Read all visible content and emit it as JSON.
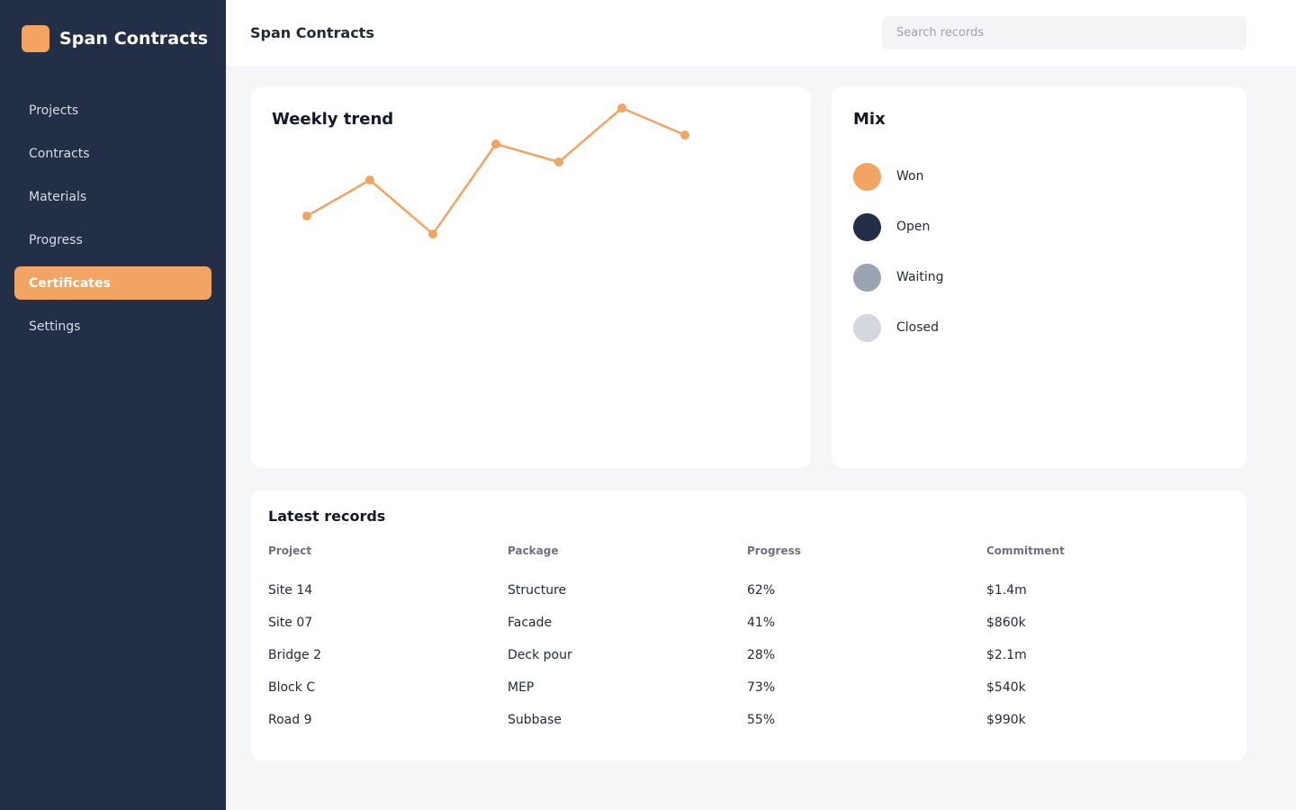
{
  "brand": {
    "name": "Span Contracts"
  },
  "nav": {
    "items": [
      {
        "label": "Projects"
      },
      {
        "label": "Contracts"
      },
      {
        "label": "Materials"
      },
      {
        "label": "Progress"
      },
      {
        "label": "Certificates",
        "active": true
      },
      {
        "label": "Settings"
      }
    ]
  },
  "header": {
    "title": "Span Contracts",
    "search_placeholder": "Search records"
  },
  "trend": {
    "title": "Weekly trend"
  },
  "mix": {
    "title": "Mix",
    "items": [
      {
        "label": "Won",
        "color": "#f2a463"
      },
      {
        "label": "Open",
        "color": "#222f47"
      },
      {
        "label": "Waiting",
        "color": "#9aa3b2"
      },
      {
        "label": "Closed",
        "color": "#d4d8de"
      }
    ]
  },
  "table": {
    "title": "Latest records",
    "columns": [
      "Project",
      "Package",
      "Progress",
      "Commitment"
    ],
    "rows": [
      [
        "Site 14",
        "Structure",
        "62%",
        "$1.4m"
      ],
      [
        "Site 07",
        "Facade",
        "41%",
        "$860k"
      ],
      [
        "Bridge 2",
        "Deck pour",
        "28%",
        "$2.1m"
      ],
      [
        "Block C",
        "MEP",
        "73%",
        "$540k"
      ],
      [
        "Road 9",
        "Subbase",
        "55%",
        "$990k"
      ]
    ]
  },
  "chart_data": {
    "type": "line",
    "title": "Weekly trend",
    "x": [
      1,
      2,
      3,
      4,
      5,
      6,
      7
    ],
    "series": [
      {
        "values": [
          40,
          60,
          30,
          80,
          70,
          100,
          85
        ],
        "color": "#f2a463"
      }
    ],
    "ylim": [
      0,
      100
    ],
    "grid": false,
    "legend": "none"
  }
}
